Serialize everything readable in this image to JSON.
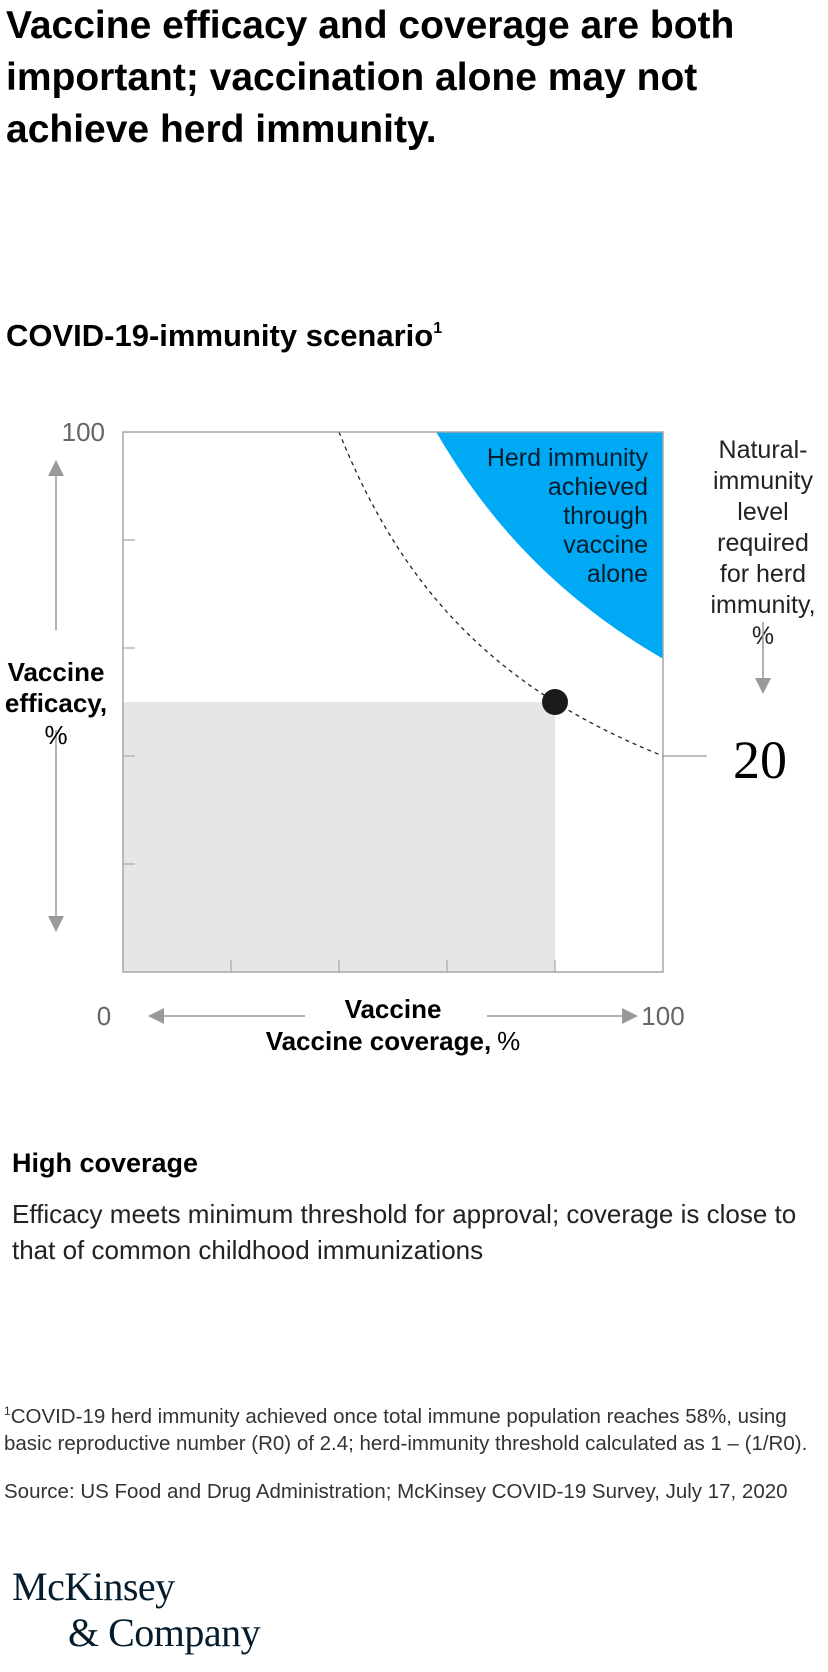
{
  "headline": "Vaccine efficacy and coverage are both important; vaccination alone may not achieve herd immunity.",
  "subtitle": {
    "text": "COVID-19-immunity scenario",
    "footnote_marker": "1"
  },
  "chart_data": {
    "type": "area",
    "x_axis": {
      "label_bold": "Vaccine coverage,",
      "label_unit": "%",
      "min": 0,
      "max": 100,
      "min_label": "0",
      "max_label": "100"
    },
    "y_axis": {
      "label_bold_1": "Vaccine",
      "label_bold_2": "efficacy,",
      "label_unit": "%",
      "min": 0,
      "max": 100,
      "max_label": "100"
    },
    "scenario_point": {
      "coverage": 80,
      "efficacy": 50
    },
    "scenario_shading_color": "#e6e6e6",
    "curve": {
      "style": "dashed",
      "description_source": "coverage × efficacy = 40",
      "product": 40,
      "x_range": [
        40,
        100
      ],
      "end_value_label": "20"
    },
    "herd_immunity_region": {
      "label_lines": [
        "Herd immunity",
        "achieved",
        "through",
        "vaccine",
        "alone"
      ],
      "color": "#00a9f4",
      "product_threshold": 58,
      "x_range": [
        58,
        100
      ]
    },
    "natural_immunity_label_lines": [
      "Natural-",
      "immunity",
      "level",
      "required",
      "for herd",
      "immunity,",
      "%"
    ],
    "natural_immunity_value": "20",
    "grid": false
  },
  "scenario": {
    "title": "High coverage",
    "description": "Efficacy meets minimum threshold for approval; coverage is close to that of common childhood immunizations"
  },
  "footnote": {
    "marker": "1",
    "text": "COVID-19 herd immunity achieved once total immune population reaches 58%, using basic reproductive number (R0) of 2.4; herd-immunity threshold calculated as 1 – (1/R0)."
  },
  "source": "Source: US Food and Drug Administration; McKinsey COVID-19 Survey, July 17, 2020",
  "logo": {
    "line1": "McKinsey",
    "line2": "& Company"
  },
  "colors": {
    "accent": "#00a9f4",
    "axis": "#a6a6a6",
    "arrow": "#999999"
  }
}
